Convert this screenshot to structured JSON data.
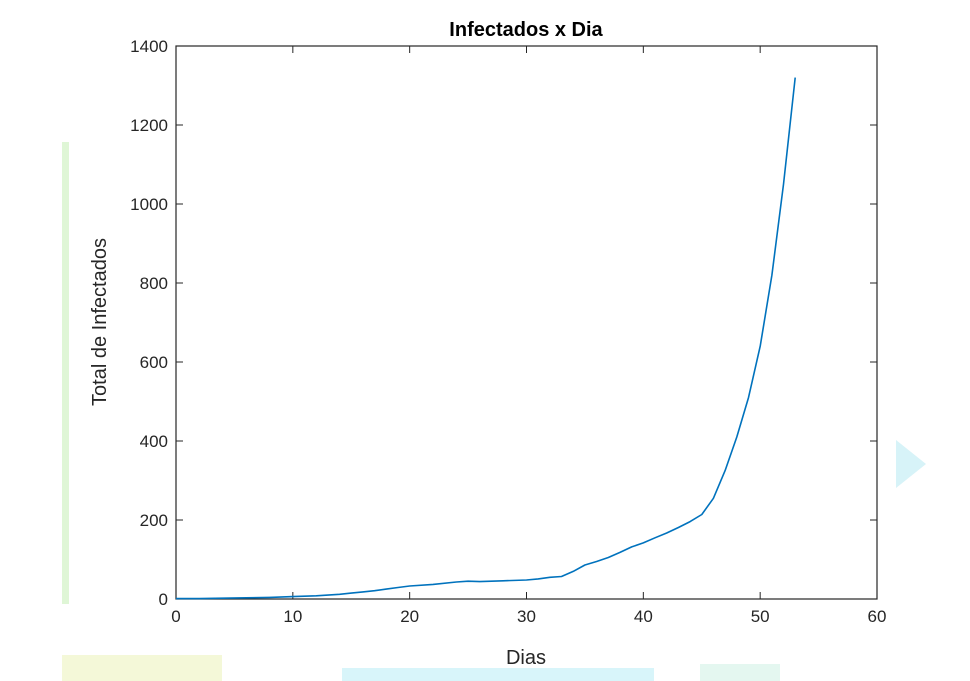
{
  "chart_data": {
    "type": "line",
    "title": "Infectados x Dia",
    "xlabel": "Dias",
    "ylabel": "Total de Infectados",
    "xlim": [
      0,
      60
    ],
    "ylim": [
      0,
      1400
    ],
    "xticks": [
      0,
      10,
      20,
      30,
      40,
      50,
      60
    ],
    "yticks": [
      0,
      200,
      400,
      600,
      800,
      1000,
      1200,
      1400
    ],
    "grid": false,
    "series": [
      {
        "color": "#0072BD",
        "x": [
          0,
          2,
          4,
          6,
          8,
          10,
          12,
          14,
          15,
          16,
          17,
          18,
          19,
          20,
          22,
          24,
          25,
          26,
          28,
          30,
          31,
          32,
          33,
          34,
          35,
          36,
          37,
          38,
          39,
          40,
          41,
          42,
          43,
          44,
          45,
          46,
          47,
          48,
          49,
          50,
          51,
          52,
          53
        ],
        "y": [
          1,
          1,
          2,
          3,
          4,
          6,
          8,
          12,
          15,
          18,
          21,
          25,
          29,
          33,
          37,
          43,
          45,
          44,
          46,
          48,
          51,
          55,
          57,
          70,
          86,
          95,
          105,
          118,
          132,
          142,
          155,
          167,
          181,
          196,
          214,
          255,
          325,
          410,
          510,
          640,
          820,
          1050,
          1320
        ]
      }
    ]
  },
  "colors": {
    "line": "#0072BD",
    "axes": "#262626",
    "background": "#ffffff"
  }
}
